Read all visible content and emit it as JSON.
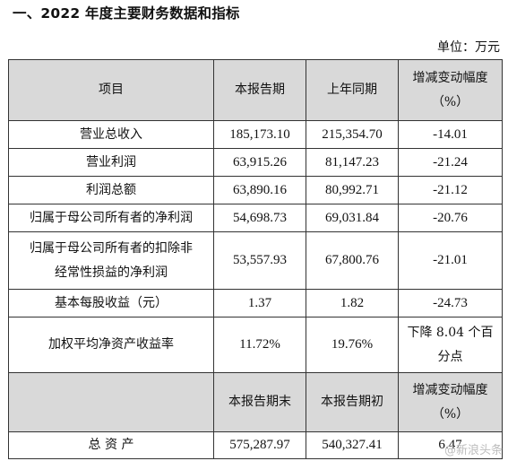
{
  "heading": "一、2022 年度主要财务数据和指标",
  "unit": "单位：万元",
  "columns": {
    "item": "项目",
    "current": "本报告期",
    "prior": "上年同期",
    "change_line1": "增减变动幅度",
    "change_line2": "（%）"
  },
  "rows": [
    {
      "label": "营业总收入",
      "current": "185,173.10",
      "prior": "215,354.70",
      "change": "-14.01"
    },
    {
      "label": "营业利润",
      "current": "63,915.26",
      "prior": "81,147.23",
      "change": "-21.24"
    },
    {
      "label": "利润总额",
      "current": "63,890.16",
      "prior": "80,992.71",
      "change": "-21.12"
    },
    {
      "label": "归属于母公司所有者的净利润",
      "current": "54,698.73",
      "prior": "69,031.84",
      "change": "-20.76"
    },
    {
      "label_line1": "归属于母公司所有者的扣除非",
      "label_line2": "经常性损益的净利润",
      "current": "53,557.93",
      "prior": "67,800.76",
      "change": "-21.01"
    },
    {
      "label": "基本每股收益（元）",
      "current": "1.37",
      "prior": "1.82",
      "change": "-24.73"
    },
    {
      "label": "加权平均净资产收益率",
      "current": "11.72%",
      "prior": "19.76%",
      "change_line1": "下降 8.04 个百",
      "change_line2": "分点"
    }
  ],
  "columns2": {
    "current": "本报告期末",
    "prior": "本报告期初",
    "change_line1": "增减变动幅度",
    "change_line2": "（%）"
  },
  "rows2": [
    {
      "label": "总 资 产",
      "current": "575,287.97",
      "prior": "540,327.41",
      "change": "6.47"
    }
  ],
  "watermark": "@新浪头条"
}
